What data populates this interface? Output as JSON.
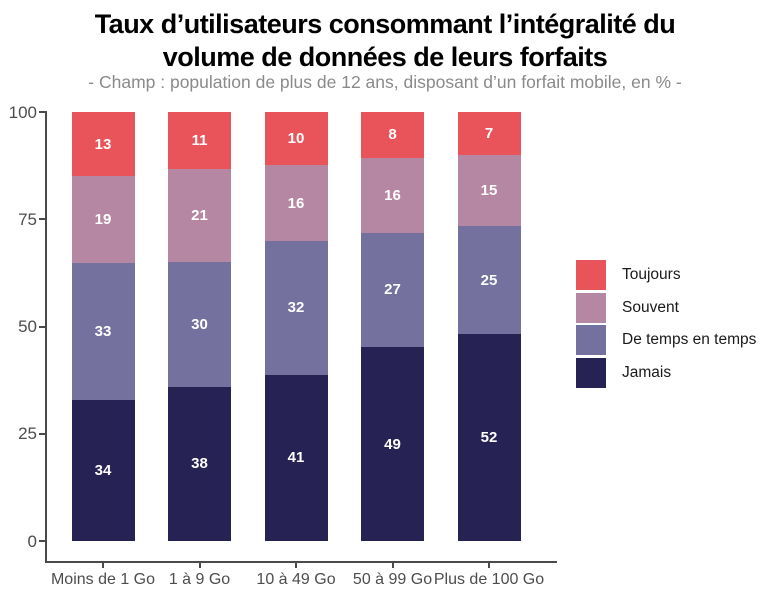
{
  "header": {
    "title_line1": "Taux d’utilisateurs consommant l’intégralité du",
    "title_line2": "volume de données de leurs forfaits",
    "subtitle": "- Champ : population de plus de 12 ans, disposant d’un forfait mobile, en % -"
  },
  "colors": {
    "toujours": "#E8545A",
    "souvent": "#B687A2",
    "de_temps_en_temps": "#74719F",
    "jamais": "#272254",
    "axis": "#4A4A4A",
    "tick_label": "#4D4D4D",
    "subtitle_text": "#8A8A8A",
    "value_label": "#FFFFFF"
  },
  "chart_data": {
    "type": "bar",
    "stacked": true,
    "title": "Taux d’utilisateurs consommant l’intégralité du volume de données de leurs forfaits",
    "subtitle": "- Champ : population de plus de 12 ans, disposant d’un forfait mobile, en % -",
    "categories": [
      "Moins de 1 Go",
      "1 à 9 Go",
      "10 à 49 Go",
      "50 à 99 Go",
      "Plus de 100 Go"
    ],
    "series": [
      {
        "name": "Jamais",
        "color": "#272254",
        "values": [
          34,
          38,
          41,
          49,
          52
        ]
      },
      {
        "name": "De temps en temps",
        "color": "#74719F",
        "values": [
          33,
          30,
          32,
          27,
          25
        ]
      },
      {
        "name": "Souvent",
        "color": "#B687A2",
        "values": [
          19,
          21,
          16,
          16,
          15
        ]
      },
      {
        "name": "Toujours",
        "color": "#E8545A",
        "values": [
          13,
          11,
          10,
          8,
          7
        ]
      }
    ],
    "xlabel": "",
    "ylabel": "",
    "ylim": [
      0,
      100
    ],
    "yticks": [
      0,
      25,
      50,
      75,
      100
    ],
    "grid": false,
    "legend_position": "right",
    "legend_order_top_to_bottom": [
      "Toujours",
      "Souvent",
      "De temps en temps",
      "Jamais"
    ],
    "value_labels": "each segment labeled with its value in white bold text"
  }
}
